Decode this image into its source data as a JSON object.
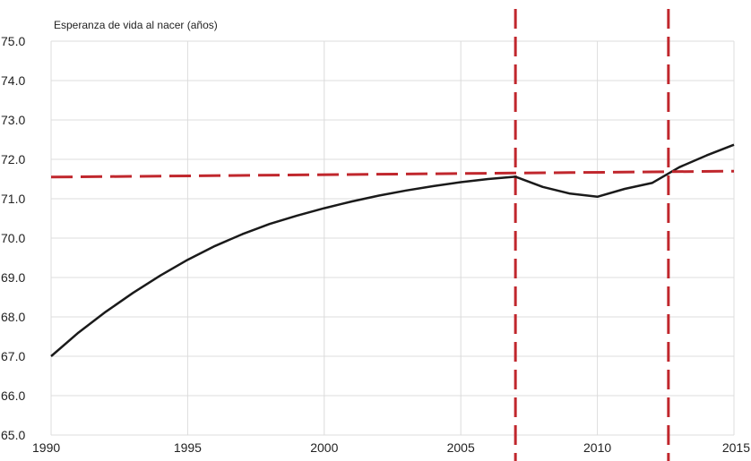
{
  "chart_data": {
    "type": "line",
    "ylabel": "Esperanza de vida al nacer (años)",
    "xlabel": "",
    "xlim": [
      1990,
      2015
    ],
    "ylim": [
      65.0,
      75.0
    ],
    "x_ticks": [
      1990,
      1995,
      2000,
      2005,
      2010,
      2015
    ],
    "x_tick_labels": [
      "1990",
      "1995",
      "2000",
      "2005",
      "2010",
      "2015"
    ],
    "y_ticks": [
      65,
      66,
      67,
      68,
      69,
      70,
      71,
      72,
      73,
      74,
      75
    ],
    "y_tick_labels": [
      "65.0",
      "66.0",
      "67.0",
      "68.0",
      "69.0",
      "70.0",
      "71.0",
      "72.0",
      "73.0",
      "74.0",
      "75.0"
    ],
    "grid": true,
    "series": [
      {
        "color": "#1a1a1a",
        "style": "solid",
        "x": [
          1990,
          1991,
          1992,
          1993,
          1994,
          1995,
          1996,
          1997,
          1998,
          1999,
          2000,
          2001,
          2002,
          2003,
          2004,
          2005,
          2006,
          2007,
          2008,
          2009,
          2010,
          2011,
          2012,
          2013,
          2014,
          2015
        ],
        "values": [
          67.0,
          67.6,
          68.13,
          68.61,
          69.05,
          69.45,
          69.8,
          70.1,
          70.36,
          70.57,
          70.76,
          70.93,
          71.08,
          71.21,
          71.32,
          71.42,
          71.5,
          71.56,
          71.3,
          71.13,
          71.05,
          71.25,
          71.4,
          71.8,
          72.1,
          72.37
        ]
      },
      {
        "color": "#c0272d",
        "style": "dashed",
        "x": [
          1990,
          2015
        ],
        "values": [
          71.55,
          71.7
        ]
      }
    ],
    "vertical_markers": [
      {
        "x": 2007,
        "color": "#c0272d",
        "style": "dashed"
      },
      {
        "x": 2012.6,
        "color": "#c0272d",
        "style": "dashed"
      }
    ]
  }
}
